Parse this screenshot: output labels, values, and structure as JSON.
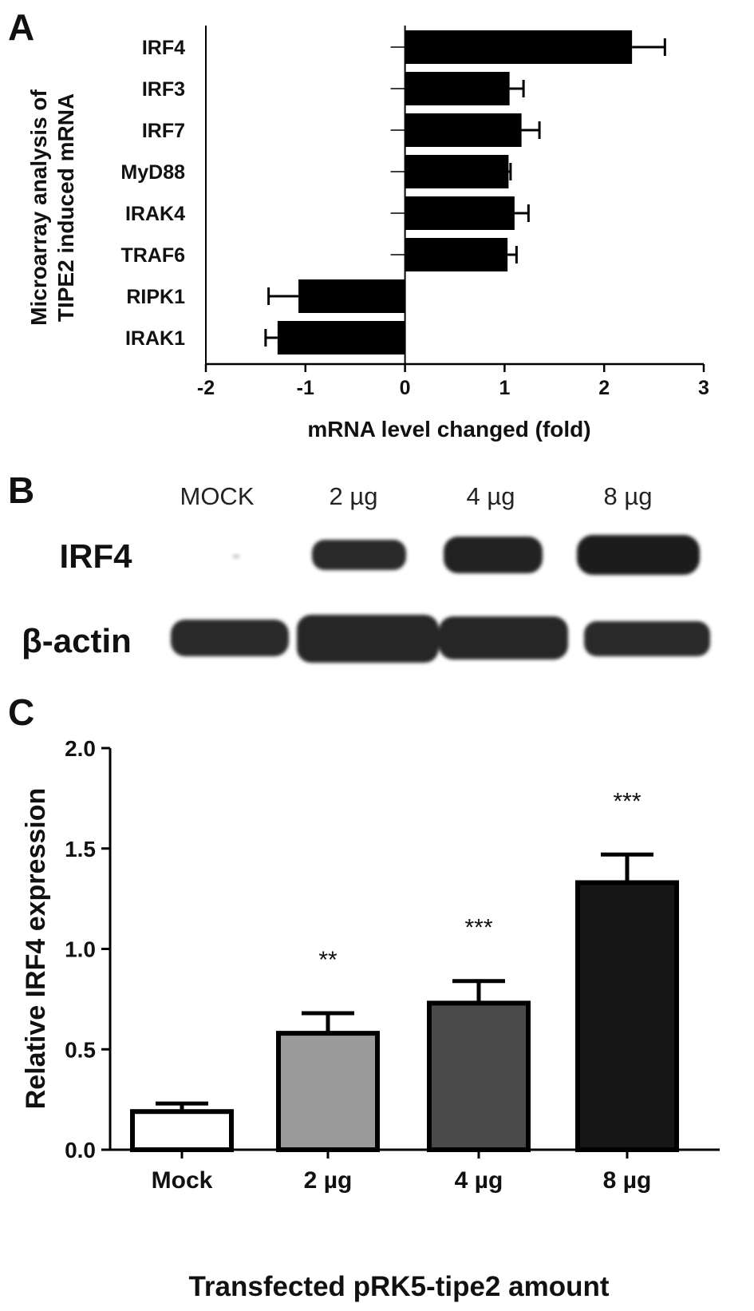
{
  "panel_a": {
    "letter": "A",
    "chart_data": {
      "type": "bar",
      "orientation": "horizontal",
      "categories": [
        "IRF4",
        "IRF3",
        "IRF7",
        "MyD88",
        "IRAK4",
        "TRAF6",
        "RIPK1",
        "IRAK1"
      ],
      "values": [
        2.28,
        1.05,
        1.17,
        1.04,
        1.1,
        1.03,
        -1.07,
        -1.28
      ],
      "errors": [
        0.33,
        0.14,
        0.18,
        0.02,
        0.14,
        0.09,
        0.3,
        0.12
      ],
      "xlim": [
        -2,
        3
      ],
      "xticks": [
        "-2",
        "-1",
        "0",
        "1",
        "2",
        "3"
      ],
      "xlabel": "mRNA level changed (fold)",
      "ylabel_line1": "Microarray analysis of",
      "ylabel_line2": "TIPE2 induced mRNA",
      "bar_color": "#000000"
    }
  },
  "panel_b": {
    "letter": "B",
    "lanes": [
      "MOCK",
      "2 µg",
      "4 µg",
      "8 µg"
    ],
    "rows": [
      "IRF4",
      "β-actin"
    ]
  },
  "panel_c": {
    "letter": "C",
    "chart_data": {
      "type": "bar",
      "categories": [
        "Mock",
        "2 µg",
        "4 µg",
        "8 µg"
      ],
      "values": [
        0.19,
        0.58,
        0.73,
        1.33
      ],
      "errors": [
        0.04,
        0.1,
        0.11,
        0.14
      ],
      "significance": [
        "",
        "**",
        "***",
        "***"
      ],
      "ylim": [
        0,
        2.0
      ],
      "yticks": [
        "0.0",
        "0.5",
        "1.0",
        "1.5",
        "2.0"
      ],
      "ylabel": "Relative IRF4 expression",
      "xlabel": "Transfected pRK5-tipe2 amount",
      "bar_colors": [
        "#ffffff",
        "#9a9a9a",
        "#4a4a4a",
        "#161616"
      ]
    }
  }
}
